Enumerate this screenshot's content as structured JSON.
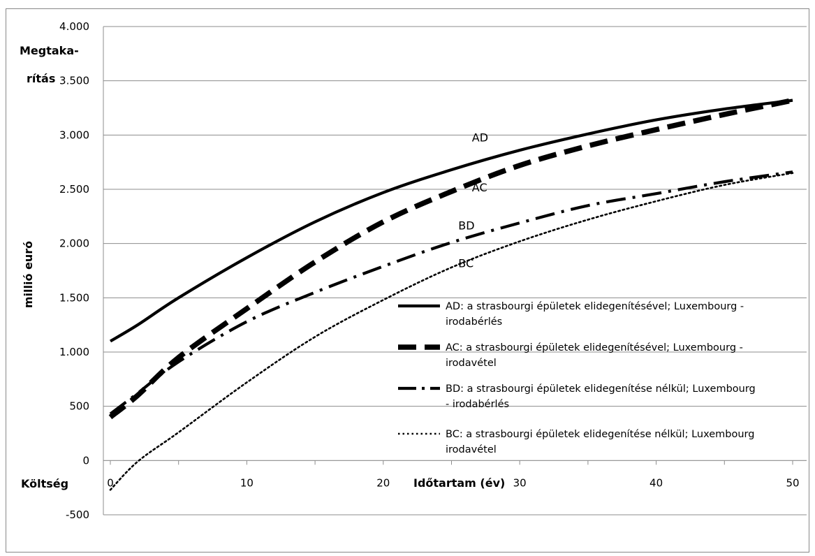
{
  "chart_data": {
    "type": "line",
    "title": "",
    "ylabel": "millió euró",
    "xlabel": "Időtartam (év)",
    "y_top_label": "Megtaka-\nrítás",
    "y_bottom_label": "Költség",
    "xlim": [
      0,
      50
    ],
    "ylim": [
      -500,
      4000
    ],
    "x_ticks": [
      0,
      10,
      20,
      30,
      40,
      50
    ],
    "x_tick_labels": [
      "0",
      "10",
      "20",
      "30",
      "40",
      "50"
    ],
    "y_ticks": [
      -500,
      0,
      500,
      1000,
      1500,
      2000,
      2500,
      3000,
      3500,
      4000
    ],
    "y_tick_labels": [
      "-500",
      "0",
      "500",
      "1.000",
      "1.500",
      "2.000",
      "2.500",
      "3.000",
      "3.500",
      "4.000"
    ],
    "grid": "horizontal",
    "legend_position": "bottom-right",
    "series": [
      {
        "name": "AD",
        "legend": "AD: a strasbourgi épületek elidegenítésével; Luxembourg - irodabérlés",
        "style": "solid",
        "x": [
          0,
          2,
          5,
          10,
          15,
          20,
          25,
          30,
          35,
          40,
          45,
          50
        ],
        "values": [
          1100,
          1250,
          1500,
          1870,
          2200,
          2470,
          2680,
          2860,
          3010,
          3140,
          3240,
          3320
        ]
      },
      {
        "name": "AC",
        "legend": "AC: a strasbourgi épületek elidegenítésével; Luxembourg - irodavétel",
        "style": "dashed",
        "x": [
          0,
          2,
          5,
          10,
          15,
          20,
          25,
          30,
          35,
          40,
          45,
          50
        ],
        "values": [
          400,
          600,
          950,
          1400,
          1830,
          2200,
          2480,
          2720,
          2900,
          3050,
          3190,
          3320
        ]
      },
      {
        "name": "BD",
        "legend": "BD: a strasbourgi épületek elidegenítése nélkül; Luxembourg - irodabérlés",
        "style": "dash-dot",
        "x": [
          0,
          2,
          5,
          10,
          15,
          20,
          25,
          30,
          35,
          40,
          45,
          50
        ],
        "values": [
          430,
          620,
          910,
          1280,
          1550,
          1790,
          2010,
          2190,
          2350,
          2460,
          2570,
          2660
        ]
      },
      {
        "name": "BC",
        "legend": "BC: a strasbourgi épületek elidegenítése nélkül; Luxembourg irodavétel",
        "style": "dotted",
        "x": [
          0,
          2,
          5,
          10,
          15,
          20,
          25,
          30,
          35,
          40,
          45,
          50
        ],
        "values": [
          -270,
          -10,
          260,
          720,
          1140,
          1480,
          1780,
          2020,
          2220,
          2390,
          2540,
          2650
        ]
      }
    ],
    "annotations": [
      {
        "text": "AD",
        "x": 26.5,
        "y": 2980
      },
      {
        "text": "AC",
        "x": 26.5,
        "y": 2520
      },
      {
        "text": "BD",
        "x": 25.5,
        "y": 2170
      },
      {
        "text": "BC",
        "x": 25.5,
        "y": 1820
      }
    ]
  }
}
